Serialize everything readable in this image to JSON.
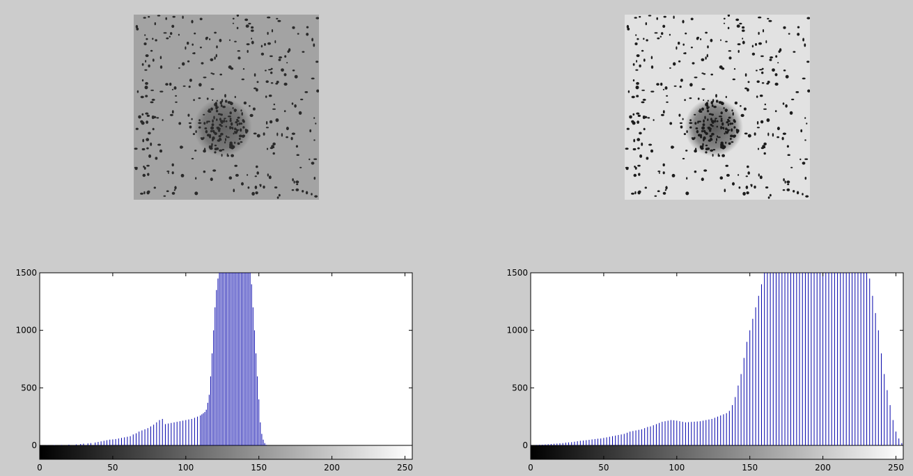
{
  "figure": {
    "panels": [
      {
        "id": "left",
        "image_kind": "original-grayscale",
        "colors": {
          "bg": "#a3a3a3",
          "dot": "#2a2a2a",
          "blob": "#5a5a5a"
        }
      },
      {
        "id": "right",
        "image_kind": "contrast-stretched-grayscale",
        "colors": {
          "bg": "#e2e2e2",
          "dot": "#1c1c1c",
          "blob": "#4a4a4a"
        }
      }
    ]
  },
  "chart_data": [
    {
      "type": "bar",
      "title": "",
      "xlabel": "",
      "ylabel": "",
      "xlim": [
        0,
        255
      ],
      "ylim": [
        0,
        1500
      ],
      "x_ticks": [
        "0",
        "50",
        "100",
        "150",
        "200",
        "250"
      ],
      "y_ticks": [
        "0",
        "500",
        "1000",
        "1500"
      ],
      "bar_color": "#0000aa",
      "colorbar": "grayscale 0-255",
      "series": [
        {
          "x": [
            5,
            10,
            15,
            20,
            25,
            28,
            30,
            33,
            35,
            38,
            40,
            42,
            44,
            46,
            48,
            50,
            52,
            54,
            56,
            58,
            60,
            62,
            64,
            66,
            68,
            70,
            72,
            74,
            76,
            78,
            80,
            82,
            84,
            86,
            88,
            90,
            92,
            94,
            96,
            98,
            100,
            102,
            104,
            106,
            108,
            110,
            111,
            112,
            113,
            114,
            115,
            116,
            117,
            118,
            119,
            120,
            121,
            122,
            123,
            124,
            125,
            126,
            127,
            128,
            129,
            130,
            131,
            132,
            133,
            134,
            135,
            136,
            137,
            138,
            139,
            140,
            141,
            142,
            143,
            144,
            145,
            146,
            147,
            148,
            149,
            150,
            151,
            152,
            153,
            154,
            155
          ],
          "values": [
            2,
            3,
            4,
            6,
            8,
            12,
            15,
            17,
            20,
            25,
            30,
            35,
            40,
            45,
            50,
            52,
            55,
            60,
            65,
            70,
            75,
            80,
            95,
            105,
            120,
            130,
            140,
            150,
            165,
            180,
            200,
            220,
            230,
            185,
            190,
            195,
            200,
            205,
            210,
            215,
            220,
            225,
            230,
            240,
            250,
            260,
            270,
            280,
            290,
            310,
            370,
            440,
            600,
            800,
            1000,
            1200,
            1350,
            1450,
            1500,
            1500,
            1500,
            1500,
            1500,
            1500,
            1500,
            1500,
            1500,
            1500,
            1500,
            1500,
            1500,
            1500,
            1500,
            1500,
            1500,
            1500,
            1500,
            1500,
            1500,
            1500,
            1400,
            1200,
            1000,
            800,
            600,
            400,
            200,
            100,
            50,
            20,
            5
          ]
        }
      ]
    },
    {
      "type": "bar",
      "title": "",
      "xlabel": "",
      "ylabel": "",
      "xlim": [
        0,
        255
      ],
      "ylim": [
        0,
        1500
      ],
      "x_ticks": [
        "0",
        "50",
        "100",
        "150",
        "200",
        "250"
      ],
      "y_ticks": [
        "0",
        "500",
        "1000",
        "1500"
      ],
      "bar_color": "#0000aa",
      "colorbar": "grayscale 0-255",
      "series": [
        {
          "x": [
            0,
            2,
            4,
            6,
            8,
            10,
            12,
            14,
            16,
            18,
            20,
            22,
            24,
            26,
            28,
            30,
            32,
            34,
            36,
            38,
            40,
            42,
            44,
            46,
            48,
            50,
            52,
            54,
            56,
            58,
            60,
            62,
            64,
            66,
            68,
            70,
            72,
            74,
            76,
            78,
            80,
            82,
            84,
            86,
            88,
            90,
            92,
            94,
            96,
            98,
            100,
            102,
            104,
            106,
            108,
            110,
            112,
            114,
            116,
            118,
            120,
            122,
            124,
            126,
            128,
            130,
            132,
            134,
            136,
            138,
            140,
            142,
            144,
            146,
            148,
            150,
            152,
            154,
            156,
            158,
            160,
            162,
            164,
            166,
            168,
            170,
            172,
            174,
            176,
            178,
            180,
            182,
            184,
            186,
            188,
            190,
            192,
            194,
            196,
            198,
            200,
            202,
            204,
            206,
            208,
            210,
            212,
            214,
            216,
            218,
            220,
            222,
            224,
            226,
            228,
            230,
            232,
            234,
            236,
            238,
            240,
            242,
            244,
            246,
            248,
            250,
            252,
            254
          ],
          "values": [
            2,
            3,
            4,
            5,
            6,
            8,
            10,
            12,
            14,
            16,
            18,
            20,
            24,
            26,
            28,
            32,
            36,
            40,
            42,
            45,
            48,
            52,
            55,
            58,
            60,
            65,
            70,
            75,
            80,
            85,
            90,
            95,
            100,
            110,
            120,
            125,
            130,
            135,
            140,
            150,
            160,
            165,
            175,
            185,
            195,
            205,
            210,
            215,
            220,
            218,
            215,
            210,
            205,
            200,
            202,
            204,
            206,
            208,
            210,
            215,
            220,
            225,
            230,
            240,
            250,
            260,
            270,
            280,
            300,
            350,
            420,
            520,
            620,
            760,
            900,
            1000,
            1100,
            1200,
            1300,
            1400,
            1500,
            1500,
            1500,
            1500,
            1500,
            1500,
            1500,
            1500,
            1500,
            1500,
            1500,
            1500,
            1500,
            1500,
            1500,
            1500,
            1500,
            1500,
            1500,
            1500,
            1500,
            1500,
            1500,
            1500,
            1500,
            1500,
            1500,
            1500,
            1500,
            1500,
            1500,
            1500,
            1500,
            1500,
            1500,
            1500,
            1450,
            1300,
            1150,
            1000,
            800,
            620,
            480,
            350,
            220,
            120,
            60,
            20
          ]
        }
      ]
    }
  ]
}
